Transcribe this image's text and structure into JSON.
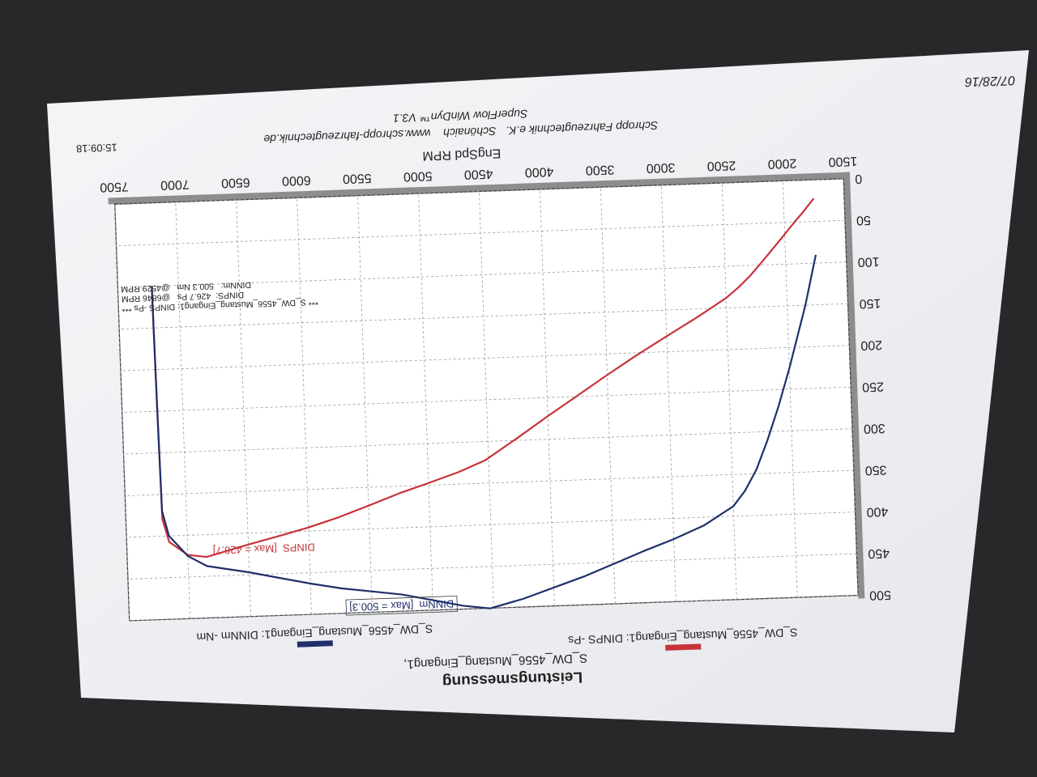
{
  "chart_data": {
    "type": "line",
    "title": "Leistungsmessung",
    "subtitle": "S_DW_4556_Mustang_Eingang1,",
    "x_label": "EngSpd RPM",
    "x": [
      1750,
      1800,
      1850,
      1900,
      2000,
      2100,
      2200,
      2300,
      2400,
      2500,
      2750,
      3000,
      3250,
      3500,
      3750,
      4000,
      4250,
      4529,
      4750,
      5000,
      5250,
      5500,
      5750,
      6000,
      6250,
      6500,
      6846,
      7000,
      7150,
      7200,
      7210,
      7220
    ],
    "series": [
      {
        "name": "S_DW_4556_Mustang_Eingang1: DINPS -Ps",
        "color": "#c8333a",
        "values": [
          22.4,
          30.8,
          39.5,
          47.3,
          64.1,
          80.7,
          97.1,
          113.0,
          126.4,
          138.1,
          160.5,
          181.5,
          202.7,
          225.3,
          248.8,
          272.2,
          296.5,
          322.6,
          335.5,
          347.4,
          358.8,
          372.0,
          384.8,
          395.6,
          404.9,
          413.7,
          426.7,
          423.6,
          407.2,
          379.3,
          256.7,
          102.8
        ]
      },
      {
        "name": "S_DW_4556_Mustang_Eingang1: DINNm -Nm",
        "color": "#1f2f6b",
        "values": [
          90,
          120,
          150,
          175,
          225,
          270,
          310,
          345,
          370,
          388,
          410,
          425,
          438,
          452,
          466,
          478,
          490,
          500.3,
          496,
          488,
          480,
          475,
          470,
          463,
          455,
          447,
          437.7,
          425,
          400,
          370,
          250,
          100
        ]
      }
    ],
    "xlim": [
      1500,
      7500
    ],
    "xticks": [
      1500,
      2000,
      2500,
      3000,
      3500,
      4000,
      4500,
      5000,
      5500,
      6000,
      6500,
      7000,
      7500
    ],
    "ylim": [
      0,
      500
    ],
    "yticks": [
      0,
      50,
      100,
      150,
      200,
      250,
      300,
      350,
      400,
      450,
      500
    ],
    "grid": true,
    "legend": "top",
    "annotations": [
      "DINPS  [Max = 426.7]",
      "DINNm  [Max = 500.3]"
    ],
    "info_box": [
      "*** S_DW_4556_Mustang_Eingang1: DINPS -Ps ***",
      "DINPS:  426.7 Ps   @6846 RPM",
      "DINNm:   500.3 Nm   @4529 RPM"
    ],
    "footer": [
      "Schropp Fahrzeugtechnik e.K.   Schönaich    www.schropp-fahrzeugtechnik.de",
      "SuperFlow WinDyn™ V3.1"
    ],
    "time": "15:09:18",
    "date": "07/28/16"
  }
}
